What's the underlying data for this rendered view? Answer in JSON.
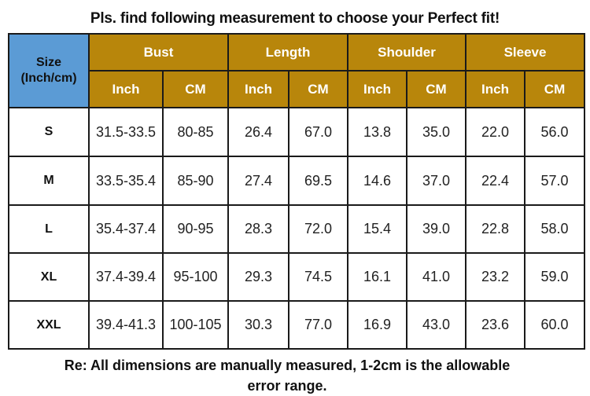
{
  "title": "Pls. find following measurement to choose your Perfect fit!",
  "table": {
    "size_header": "Size (Inch/cm)",
    "groups": [
      "Bust",
      "Length",
      "Shoulder",
      "Sleeve"
    ],
    "units": [
      "Inch",
      "CM"
    ],
    "rows": [
      {
        "size": "S",
        "cells": [
          "31.5-33.5",
          "80-85",
          "26.4",
          "67.0",
          "13.8",
          "35.0",
          "22.0",
          "56.0"
        ]
      },
      {
        "size": "M",
        "cells": [
          "33.5-35.4",
          "85-90",
          "27.4",
          "69.5",
          "14.6",
          "37.0",
          "22.4",
          "57.0"
        ]
      },
      {
        "size": "L",
        "cells": [
          "35.4-37.4",
          "90-95",
          "28.3",
          "72.0",
          "15.4",
          "39.0",
          "22.8",
          "58.0"
        ]
      },
      {
        "size": "XL",
        "cells": [
          "37.4-39.4",
          "95-100",
          "29.3",
          "74.5",
          "16.1",
          "41.0",
          "23.2",
          "59.0"
        ]
      },
      {
        "size": "XXL",
        "cells": [
          "39.4-41.3",
          "100-105",
          "30.3",
          "77.0",
          "16.9",
          "43.0",
          "23.6",
          "60.0"
        ]
      }
    ]
  },
  "note": "Re: All dimensions are manually measured, 1-2cm is the allowable error range.",
  "colors": {
    "header_gold": "#b8860b",
    "size_header_blue": "#5b9bd5"
  }
}
